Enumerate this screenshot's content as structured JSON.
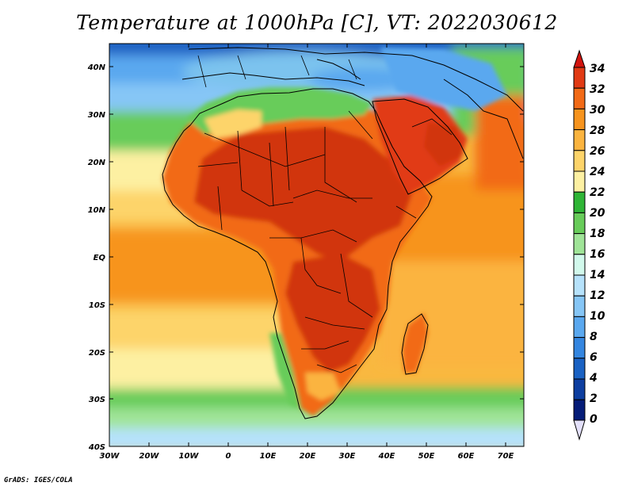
{
  "title": "Temperature at 1000hPa [C], VT: 2022030612",
  "credit": "GrADS: IGES/COLA",
  "lat_labels": [
    "40N",
    "30N",
    "20N",
    "10N",
    "EQ",
    "10S",
    "20S",
    "30S",
    "40S"
  ],
  "lon_labels": [
    "30W",
    "20W",
    "10W",
    "0",
    "10E",
    "20E",
    "30E",
    "40E",
    "50E",
    "60E",
    "70E"
  ],
  "colorbar": {
    "labels": [
      "34",
      "32",
      "30",
      "28",
      "26",
      "24",
      "22",
      "20",
      "18",
      "16",
      "14",
      "12",
      "10",
      "8",
      "6",
      "4",
      "2",
      "0"
    ],
    "colors": [
      "#e13a14",
      "#f26a16",
      "#f7941e",
      "#fbb43f",
      "#fdd46a",
      "#fdf0a2",
      "#2fb536",
      "#68cc5a",
      "#a0e498",
      "#d2f9ec",
      "#b6e2fb",
      "#86c6f6",
      "#5aa8ef",
      "#3486e0",
      "#1a62c3",
      "#0d3ea0",
      "#051c78"
    ],
    "over_color": "#d2140e",
    "under_color": "#e3e0fa"
  },
  "map": {
    "ocean_color": "#f9b840",
    "sahara_color": "#d1360e",
    "med_color": "#7cc3ee"
  }
}
